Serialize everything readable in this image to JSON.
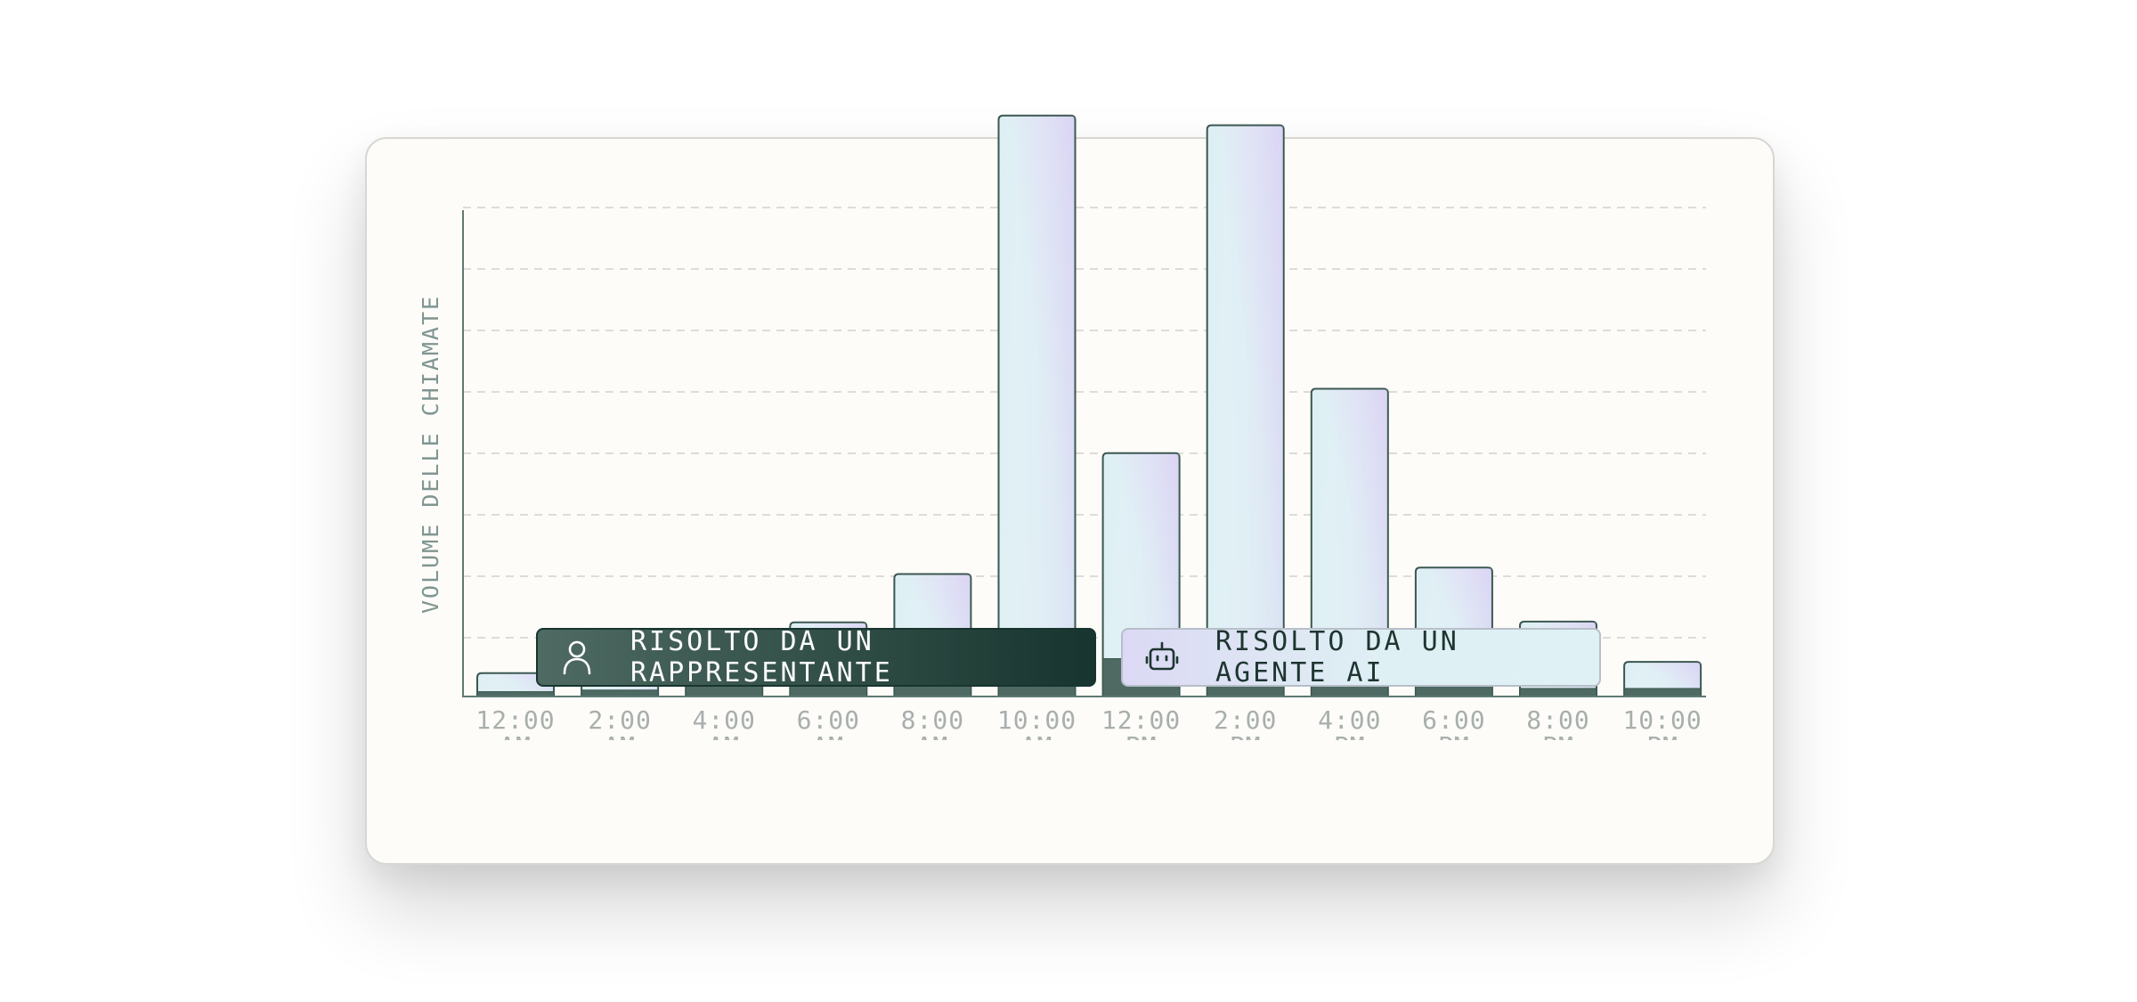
{
  "chart_data": {
    "type": "bar",
    "stacked": true,
    "ylabel": "VOLUME DELLE CHIAMATE",
    "xlabel": "",
    "categories": [
      "12:00 AM",
      "2:00 AM",
      "4:00 AM",
      "6:00 AM",
      "8:00 AM",
      "10:00 AM",
      "12:00 PM",
      "2:00 PM",
      "4:00 PM",
      "6:00 PM",
      "8:00 PM",
      "10:00 PM"
    ],
    "tick_labels": [
      [
        "12:00",
        "AM"
      ],
      [
        "2:00",
        "AM"
      ],
      [
        "4:00",
        "AM"
      ],
      [
        "6:00",
        "AM"
      ],
      [
        "8:00",
        "AM"
      ],
      [
        "10:00",
        "AM"
      ],
      [
        "12:00",
        "PM"
      ],
      [
        "2:00",
        "PM"
      ],
      [
        "4:00",
        "PM"
      ],
      [
        "6:00",
        "PM"
      ],
      [
        "8:00",
        "PM"
      ],
      [
        "10:00",
        "PM"
      ]
    ],
    "series": [
      {
        "name": "RISOLTO DA UN RAPPRESENTANTE",
        "values": [
          6,
          8,
          13,
          47,
          59,
          59,
          47,
          19,
          26,
          14,
          10,
          10
        ],
        "color": "#4e6a63"
      },
      {
        "name": "RISOLTO DA UN AGENTE AI",
        "values": [
          23,
          37,
          44,
          45,
          93,
          662,
          255,
          690,
          356,
          146,
          83,
          33
        ],
        "color": "#dff0f4"
      }
    ],
    "ylim": [
      0,
      730
    ],
    "grid": true,
    "y_tick_labels_visible": false
  },
  "legend": {
    "rep_label": "RISOLTO DA UN RAPPRESENTANTE",
    "ai_label": "RISOLTO DA UN AGENTE AI",
    "rep_icon": "person-icon",
    "ai_icon": "robot-icon"
  },
  "colors": {
    "human_fill": "#4e6a63",
    "ai_fill_start": "#dcd9f4",
    "ai_fill_end": "#dff1f4",
    "outline": "#3b5750",
    "axis": "#5f7873",
    "tick_text": "#a8afad",
    "ylabel_text": "#7f9692",
    "grid": "#dcdcd8"
  }
}
